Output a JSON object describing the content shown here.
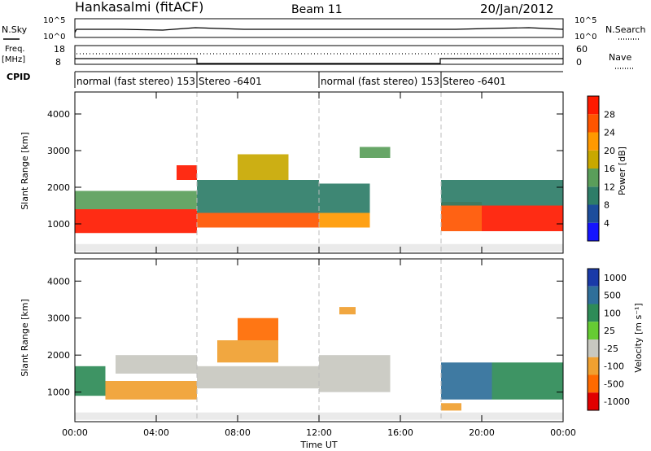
{
  "header": {
    "station": "Hankasalmi (fitACF)",
    "beam": "Beam 11",
    "date": "20/Jan/2012"
  },
  "status_panels": {
    "nsky_label": "N.Sky",
    "nsearch_label": "N.Search",
    "nsky_ticks": [
      "10^5",
      "10^0"
    ],
    "nsearch_ticks": [
      "10^5",
      "10^0"
    ],
    "freq_label": "Freq.",
    "freq_unit": "[MHz]",
    "freq_ticks": [
      "18",
      "8"
    ],
    "nave_label": "Nave",
    "nave_ticks": [
      "60",
      "0"
    ],
    "cpid_label": "CPID",
    "cpid_segments": [
      {
        "label": "normal (fast stereo) 153",
        "start_hour": 0
      },
      {
        "label": "Stereo -6401",
        "start_hour": 6
      },
      {
        "label": "normal (fast stereo) 153",
        "start_hour": 12
      },
      {
        "label": "Stereo -6401",
        "start_hour": 18
      }
    ]
  },
  "power_colorbar": {
    "title": "Power [dB]",
    "ticks": [
      "28",
      "24",
      "20",
      "16",
      "12",
      "8",
      "4"
    ],
    "colors": [
      "#1515ff",
      "#1c4d9c",
      "#2e7d68",
      "#5a9e5a",
      "#c8a800",
      "#ff9900",
      "#ff5500",
      "#ff1a00"
    ]
  },
  "velocity_colorbar": {
    "title": "Velocity [m s⁻¹]",
    "ticks": [
      "1000",
      "500",
      "100",
      "25",
      "-25",
      "-100",
      "-500",
      "-1000"
    ],
    "colors": [
      "#1a3aa8",
      "#2f6f9a",
      "#2e8b57",
      "#66cc33",
      "#c8c8c0",
      "#f0a030",
      "#ff6a00",
      "#e00000"
    ]
  },
  "chart_data": [
    {
      "type": "heatmap",
      "title": "Power",
      "xlabel": "",
      "ylabel": "Slant Range [km]",
      "xlim": [
        0,
        24
      ],
      "ylim": [
        200,
        4600
      ],
      "x_ticks": [
        "00:00",
        "04:00",
        "08:00",
        "12:00",
        "16:00",
        "20:00",
        "00:00"
      ],
      "y_ticks": [
        1000,
        2000,
        3000,
        4000
      ],
      "cells": [
        {
          "x": [
            0.0,
            6.0
          ],
          "y": [
            750,
            1400
          ],
          "value": 28
        },
        {
          "x": [
            6.0,
            12.0
          ],
          "y": [
            900,
            1300
          ],
          "value": 24
        },
        {
          "x": [
            12.0,
            14.5
          ],
          "y": [
            900,
            1300
          ],
          "value": 20
        },
        {
          "x": [
            0.0,
            6.0
          ],
          "y": [
            1400,
            1900
          ],
          "value": 12
        },
        {
          "x": [
            6.0,
            12.0
          ],
          "y": [
            1300,
            2200
          ],
          "value": 8
        },
        {
          "x": [
            12.0,
            14.5
          ],
          "y": [
            1300,
            2100
          ],
          "value": 8
        },
        {
          "x": [
            8.0,
            10.5
          ],
          "y": [
            2200,
            2900
          ],
          "value": 16
        },
        {
          "x": [
            5.0,
            6.0
          ],
          "y": [
            2200,
            2600
          ],
          "value": 28
        },
        {
          "x": [
            18.0,
            20.0
          ],
          "y": [
            800,
            1600
          ],
          "value": 24
        },
        {
          "x": [
            20.0,
            24.0
          ],
          "y": [
            800,
            1500
          ],
          "value": 28
        },
        {
          "x": [
            18.0,
            24.0
          ],
          "y": [
            1500,
            2200
          ],
          "value": 8
        },
        {
          "x": [
            14.0,
            15.5
          ],
          "y": [
            2800,
            3100
          ],
          "value": 12
        }
      ]
    },
    {
      "type": "heatmap",
      "title": "Velocity",
      "xlabel": "Time UT",
      "ylabel": "Slant Range [km]",
      "xlim": [
        0,
        24
      ],
      "ylim": [
        200,
        4600
      ],
      "x_ticks": [
        "00:00",
        "04:00",
        "08:00",
        "12:00",
        "16:00",
        "20:00",
        "00:00"
      ],
      "y_ticks": [
        1000,
        2000,
        3000,
        4000
      ],
      "cells": [
        {
          "x": [
            0.0,
            1.5
          ],
          "y": [
            900,
            1700
          ],
          "value": 100
        },
        {
          "x": [
            1.5,
            6.0
          ],
          "y": [
            800,
            1300
          ],
          "value": -100
        },
        {
          "x": [
            2.0,
            6.0
          ],
          "y": [
            1500,
            2000
          ],
          "value": -25
        },
        {
          "x": [
            6.0,
            12.0
          ],
          "y": [
            1100,
            1700
          ],
          "value": -25
        },
        {
          "x": [
            7.0,
            10.0
          ],
          "y": [
            1800,
            2400
          ],
          "value": -100
        },
        {
          "x": [
            8.0,
            10.0
          ],
          "y": [
            2400,
            3000
          ],
          "value": -500
        },
        {
          "x": [
            12.0,
            15.5
          ],
          "y": [
            1000,
            2000
          ],
          "value": -25
        },
        {
          "x": [
            13.0,
            13.8
          ],
          "y": [
            3100,
            3300
          ],
          "value": -100
        },
        {
          "x": [
            18.0,
            20.5
          ],
          "y": [
            800,
            1800
          ],
          "value": 500
        },
        {
          "x": [
            20.5,
            24.0
          ],
          "y": [
            800,
            1800
          ],
          "value": 100
        },
        {
          "x": [
            18.0,
            19.0
          ],
          "y": [
            500,
            700
          ],
          "value": -100
        }
      ]
    }
  ]
}
